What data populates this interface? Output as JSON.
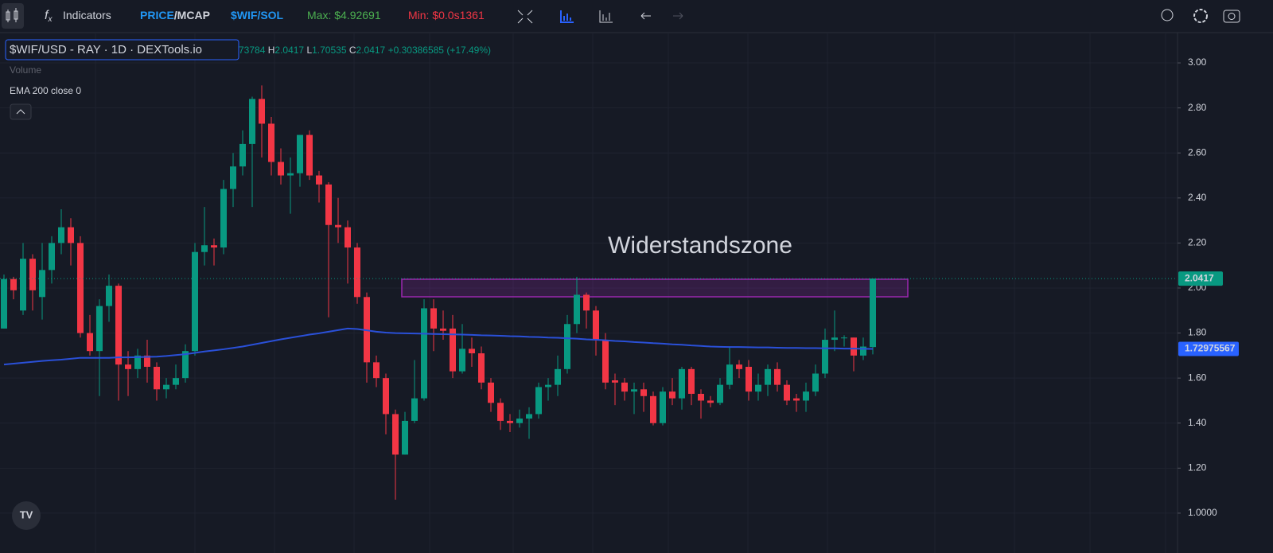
{
  "toolbar": {
    "indicators": "Indicators",
    "price": "PRICE",
    "mcap": "/MCAP",
    "pair": "$WIF/SOL",
    "max": "Max: $4.92691",
    "min": "Min: $0.0s1361"
  },
  "chart_data": {
    "type": "candlestick",
    "title": "$WIF/USD - RAY · 1D · DEXTools.io",
    "legend": {
      "open_fragment": "73784",
      "h": "H",
      "l": "L",
      "c": "C",
      "change": "+0.30386585 (+17.49%)",
      "volume": "Volume"
    },
    "up_color": "#089981",
    "down_color": "#f23645",
    "open": [
      1.82,
      2.04,
      1.9,
      2.13,
      1.96,
      2.08,
      2.2,
      2.27,
      2.2,
      1.8,
      1.72,
      1.92,
      2.01,
      1.66,
      1.64,
      1.7,
      1.65,
      1.55,
      1.57,
      1.6,
      1.72,
      2.16,
      2.19,
      2.18,
      2.44,
      2.54,
      2.64,
      2.84,
      2.73,
      2.56,
      2.5,
      2.51,
      2.68,
      2.5,
      2.46,
      2.28,
      2.27,
      2.18,
      1.96,
      1.67,
      1.6,
      1.44,
      1.26,
      1.41,
      1.51,
      1.91,
      1.82,
      1.82,
      1.63,
      1.73,
      1.71,
      1.58,
      1.49,
      1.41,
      1.4,
      1.42,
      1.44,
      1.56,
      1.57,
      1.64,
      1.84,
      1.97,
      1.9,
      1.77,
      1.59,
      1.58,
      1.54,
      1.55,
      1.52,
      1.4,
      1.54,
      1.51,
      1.64,
      1.53,
      1.5,
      1.49,
      1.57,
      1.66,
      1.65,
      1.54,
      1.57,
      1.64,
      1.57,
      1.51,
      1.5,
      1.54,
      1.62,
      1.77,
      1.78,
      1.78,
      1.7,
      1.73784
    ],
    "high": [
      2.06,
      2.05,
      2.2,
      2.15,
      2.2,
      2.23,
      2.35,
      2.31,
      2.23,
      1.88,
      1.95,
      2.06,
      2.02,
      1.72,
      1.73,
      1.77,
      1.67,
      1.6,
      1.66,
      1.75,
      2.2,
      2.36,
      2.22,
      2.48,
      2.6,
      2.7,
      2.85,
      2.9,
      2.76,
      2.62,
      2.58,
      2.68,
      2.7,
      2.52,
      2.47,
      2.4,
      2.3,
      2.2,
      1.98,
      1.7,
      1.62,
      1.46,
      1.45,
      1.68,
      1.95,
      1.95,
      1.9,
      1.88,
      1.84,
      1.78,
      1.74,
      1.6,
      1.51,
      1.44,
      1.46,
      1.47,
      1.58,
      1.6,
      1.7,
      1.88,
      2.05,
      1.98,
      1.92,
      1.8,
      1.62,
      1.6,
      1.58,
      1.58,
      1.54,
      1.56,
      1.6,
      1.65,
      1.65,
      1.55,
      1.52,
      1.6,
      1.74,
      1.68,
      1.68,
      1.62,
      1.66,
      1.67,
      1.59,
      1.53,
      1.58,
      1.66,
      1.82,
      1.9,
      1.79,
      1.78,
      1.78,
      2.0417
    ],
    "low": [
      1.82,
      1.95,
      1.88,
      1.9,
      1.86,
      2.02,
      2.15,
      2.1,
      1.78,
      1.7,
      1.52,
      1.85,
      1.5,
      1.52,
      1.6,
      1.58,
      1.5,
      1.51,
      1.55,
      1.58,
      1.7,
      2.1,
      2.1,
      2.15,
      2.36,
      2.5,
      2.36,
      2.58,
      2.5,
      2.46,
      2.33,
      2.45,
      2.48,
      2.38,
      1.87,
      2.2,
      2.02,
      1.93,
      1.58,
      1.56,
      1.35,
      1.06,
      1.26,
      1.4,
      1.5,
      1.72,
      1.77,
      1.6,
      1.62,
      1.65,
      1.55,
      1.45,
      1.37,
      1.36,
      1.38,
      1.33,
      1.42,
      1.5,
      1.52,
      1.62,
      1.8,
      1.82,
      1.7,
      1.55,
      1.48,
      1.5,
      1.44,
      1.45,
      1.39,
      1.39,
      1.48,
      1.46,
      1.48,
      1.42,
      1.47,
      1.48,
      1.55,
      1.6,
      1.5,
      1.5,
      1.52,
      1.54,
      1.48,
      1.45,
      1.45,
      1.52,
      1.6,
      1.72,
      1.74,
      1.63,
      1.68,
      1.70535
    ],
    "close": [
      2.04,
      1.99,
      2.13,
      1.99,
      2.08,
      2.2,
      2.27,
      2.2,
      1.8,
      1.72,
      1.92,
      2.01,
      1.66,
      1.64,
      1.7,
      1.65,
      1.55,
      1.57,
      1.6,
      1.72,
      2.16,
      2.19,
      2.18,
      2.44,
      2.54,
      2.64,
      2.84,
      2.73,
      2.56,
      2.5,
      2.51,
      2.68,
      2.5,
      2.46,
      2.28,
      2.27,
      2.18,
      1.96,
      1.67,
      1.6,
      1.44,
      1.26,
      1.41,
      1.51,
      1.91,
      1.82,
      1.81,
      1.63,
      1.73,
      1.71,
      1.58,
      1.49,
      1.41,
      1.4,
      1.42,
      1.44,
      1.56,
      1.57,
      1.64,
      1.84,
      1.97,
      1.9,
      1.77,
      1.58,
      1.58,
      1.54,
      1.55,
      1.52,
      1.4,
      1.54,
      1.51,
      1.64,
      1.53,
      1.5,
      1.49,
      1.57,
      1.66,
      1.64,
      1.54,
      1.57,
      1.64,
      1.57,
      1.5,
      1.5,
      1.54,
      1.62,
      1.77,
      1.78,
      1.78,
      1.7,
      1.74,
      2.0417
    ],
    "ema": {
      "name": "EMA 200 close 0",
      "color": "#2a50d8",
      "values": [
        1.66,
        1.664,
        1.668,
        1.672,
        1.676,
        1.679,
        1.682,
        1.686,
        1.69,
        1.69,
        1.69,
        1.69,
        1.692,
        1.692,
        1.693,
        1.694,
        1.695,
        1.698,
        1.702,
        1.706,
        1.712,
        1.718,
        1.723,
        1.728,
        1.734,
        1.74,
        1.748,
        1.756,
        1.764,
        1.772,
        1.779,
        1.786,
        1.793,
        1.799,
        1.806,
        1.813,
        1.82,
        1.818,
        1.812,
        1.806,
        1.802,
        1.8,
        1.799,
        1.798,
        1.797,
        1.796,
        1.795,
        1.794,
        1.793,
        1.792,
        1.79,
        1.789,
        1.788,
        1.786,
        1.785,
        1.783,
        1.782,
        1.78,
        1.779,
        1.777,
        1.775,
        1.772,
        1.77,
        1.768,
        1.765,
        1.763,
        1.76,
        1.758,
        1.755,
        1.753,
        1.75,
        1.748,
        1.745,
        1.743,
        1.74,
        1.739,
        1.738,
        1.738,
        1.737,
        1.736,
        1.736,
        1.735,
        1.734,
        1.734,
        1.733,
        1.733,
        1.732,
        1.732,
        1.731,
        1.731,
        1.73,
        1.72975567
      ]
    },
    "zone": {
      "label": "Widerstandszone",
      "ylim": [
        1.961,
        2.039
      ],
      "color": "#9c27b0"
    },
    "ylim": [
      0.876,
      3.138
    ],
    "yticks": [
      {
        "value": 1,
        "label": "1.0000"
      },
      {
        "value": 1.2,
        "label": "1.20"
      },
      {
        "value": 1.4,
        "label": "1.40"
      },
      {
        "value": 1.6,
        "label": "1.60"
      },
      {
        "value": 1.8,
        "label": "1.80"
      },
      {
        "value": 2,
        "label": "2.00"
      },
      {
        "value": 2.2,
        "label": "2.20"
      },
      {
        "value": 2.4,
        "label": "2.40"
      },
      {
        "value": 2.6,
        "label": "2.60"
      },
      {
        "value": 2.8,
        "label": "2.80"
      },
      {
        "value": 3,
        "label": "3.00"
      }
    ],
    "grid": true
  }
}
